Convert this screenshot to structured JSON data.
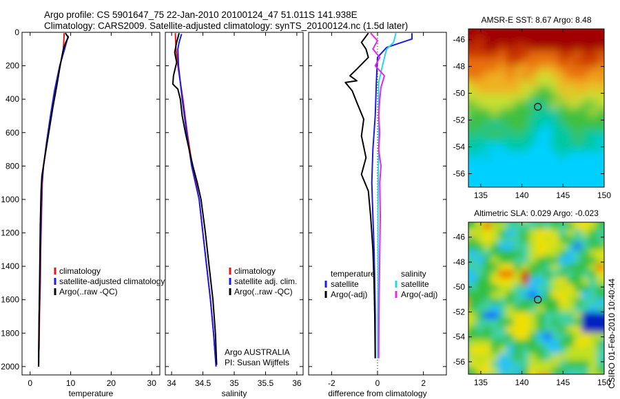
{
  "header": {
    "line1": "Argo profile: CS 5901647_75 22-Jan-2010 20100124_47 51.011S 141.938E",
    "line2": "Climatology: CARS2009. Satellite-adjusted climatology: synTS_20100124.nc (1.5d later)"
  },
  "side_label": "CSIRO 01-Feb-2010 10:40:44",
  "colors": {
    "climatology": "#ee1111",
    "satellite": "#1a1aee",
    "argo": "#000000",
    "sat_salinity": "#22d8e8",
    "argo_adj_salinity": "#ee22ee"
  },
  "chart_data": [
    {
      "type": "line",
      "name": "temperature",
      "xlabel": "temperature",
      "ylabel": "",
      "xlim": [
        -2,
        32
      ],
      "ylim": [
        2050,
        0
      ],
      "xticks": [
        0,
        10,
        20,
        30
      ],
      "yticks": [
        0,
        200,
        400,
        600,
        800,
        1000,
        1200,
        1400,
        1600,
        1800,
        2000
      ],
      "legend": {
        "placement": "lower-right",
        "entries": [
          "climatology",
          "satellite-adjusted climatology",
          "Argo(..raw -QC)"
        ]
      },
      "series": [
        {
          "key": "climatology",
          "color": "climatology",
          "points": [
            [
              8.4,
              5
            ],
            [
              8.2,
              100
            ],
            [
              7.4,
              200
            ],
            [
              6.1,
              350
            ],
            [
              5.1,
              500
            ],
            [
              4.2,
              650
            ],
            [
              3.3,
              800
            ],
            [
              3.0,
              900
            ],
            [
              2.8,
              1100
            ],
            [
              2.6,
              1300
            ],
            [
              2.5,
              1500
            ],
            [
              2.3,
              1700
            ],
            [
              2.2,
              1900
            ]
          ]
        },
        {
          "key": "satellite",
          "color": "satellite",
          "points": [
            [
              9.4,
              20
            ],
            [
              8.5,
              100
            ],
            [
              7.3,
              200
            ],
            [
              6.0,
              350
            ],
            [
              5.0,
              500
            ],
            [
              4.1,
              650
            ],
            [
              3.3,
              800
            ],
            [
              2.9,
              900
            ],
            [
              2.7,
              1100
            ],
            [
              2.5,
              1300
            ],
            [
              2.4,
              1500
            ],
            [
              2.2,
              1700
            ],
            [
              2.1,
              1900
            ],
            [
              2.1,
              2000
            ]
          ]
        },
        {
          "key": "argo",
          "color": "argo",
          "points": [
            [
              8.7,
              5
            ],
            [
              9.4,
              30
            ],
            [
              8.8,
              60
            ],
            [
              8.2,
              100
            ],
            [
              7.4,
              200
            ],
            [
              6.5,
              330
            ],
            [
              5.6,
              450
            ],
            [
              4.6,
              600
            ],
            [
              3.6,
              750
            ],
            [
              2.9,
              860
            ],
            [
              2.7,
              950
            ],
            [
              2.5,
              1150
            ],
            [
              2.4,
              1350
            ],
            [
              2.3,
              1550
            ],
            [
              2.2,
              1750
            ],
            [
              2.1,
              2000
            ]
          ]
        }
      ],
      "annotations": []
    },
    {
      "type": "line",
      "name": "salinity",
      "xlabel": "salinity",
      "ylabel": "",
      "xlim": [
        33.9,
        36.1
      ],
      "ylim": [
        2050,
        0
      ],
      "xticks": [
        34,
        34.5,
        35,
        35.5,
        36
      ],
      "yticks": [
        0,
        200,
        400,
        600,
        800,
        1000,
        1200,
        1400,
        1600,
        1800,
        2000
      ],
      "legend": {
        "placement": "lower-right",
        "entries": [
          "climatology",
          "satellite adj. clim.",
          "Argo(..raw -QC)"
        ]
      },
      "series": [
        {
          "key": "climatology",
          "color": "climatology",
          "points": [
            [
              34.06,
              5
            ],
            [
              34.07,
              100
            ],
            [
              34.1,
              200
            ],
            [
              34.18,
              400
            ],
            [
              34.25,
              600
            ],
            [
              34.33,
              800
            ],
            [
              34.39,
              900
            ],
            [
              34.44,
              1000
            ],
            [
              34.5,
              1200
            ],
            [
              34.56,
              1400
            ],
            [
              34.62,
              1600
            ],
            [
              34.67,
              1800
            ],
            [
              34.7,
              1950
            ]
          ]
        },
        {
          "key": "satellite",
          "color": "satellite",
          "points": [
            [
              34.16,
              10
            ],
            [
              34.12,
              60
            ],
            [
              34.1,
              100
            ],
            [
              34.11,
              200
            ],
            [
              34.17,
              400
            ],
            [
              34.24,
              600
            ],
            [
              34.32,
              800
            ],
            [
              34.38,
              900
            ],
            [
              34.44,
              1000
            ],
            [
              34.5,
              1200
            ],
            [
              34.56,
              1400
            ],
            [
              34.62,
              1600
            ],
            [
              34.67,
              1800
            ],
            [
              34.7,
              1950
            ],
            [
              34.71,
              2000
            ]
          ]
        },
        {
          "key": "argo",
          "color": "argo",
          "points": [
            [
              34.12,
              5
            ],
            [
              34.08,
              60
            ],
            [
              34.05,
              120
            ],
            [
              34.08,
              180
            ],
            [
              34.03,
              260
            ],
            [
              34.02,
              310
            ],
            [
              34.1,
              340
            ],
            [
              34.14,
              400
            ],
            [
              34.17,
              500
            ],
            [
              34.22,
              600
            ],
            [
              34.28,
              700
            ],
            [
              34.34,
              800
            ],
            [
              34.41,
              900
            ],
            [
              34.47,
              1000
            ],
            [
              34.54,
              1200
            ],
            [
              34.6,
              1400
            ],
            [
              34.66,
              1600
            ],
            [
              34.7,
              1800
            ],
            [
              34.72,
              1990
            ]
          ]
        }
      ],
      "annotations": [
        "Argo AUSTRALIA",
        "PI: Susan Wijffels"
      ]
    },
    {
      "type": "line",
      "name": "difference",
      "xlabel": "difference from climatology",
      "ylabel": "",
      "xlim": [
        -3,
        3
      ],
      "ylim": [
        2050,
        0
      ],
      "xticks": [
        -2,
        0,
        2
      ],
      "yticks": [
        0,
        200,
        400,
        600,
        800,
        1000,
        1200,
        1400,
        1600,
        1800,
        2000
      ],
      "legend": {
        "placement": "lower-center",
        "columns": [
          {
            "title": "temperature",
            "entries": [
              "satellite",
              "Argo(-adj)"
            ]
          },
          {
            "title": "salinity",
            "entries": [
              "satellite",
              "Argo(-adj)"
            ]
          }
        ]
      },
      "series": [
        {
          "key": "temp_satellite",
          "color": "satellite",
          "points": [
            [
              1.5,
              5
            ],
            [
              1.5,
              40
            ],
            [
              0.4,
              90
            ],
            [
              0.0,
              150
            ],
            [
              -0.05,
              300
            ],
            [
              -0.1,
              500
            ],
            [
              -0.2,
              700
            ],
            [
              -0.25,
              900
            ],
            [
              -0.2,
              1100
            ],
            [
              -0.15,
              1300
            ],
            [
              -0.12,
              1500
            ],
            [
              -0.1,
              1700
            ],
            [
              -0.1,
              1950
            ]
          ]
        },
        {
          "key": "temp_argo",
          "color": "argo",
          "points": [
            [
              -0.4,
              5
            ],
            [
              -0.7,
              60
            ],
            [
              -0.5,
              100
            ],
            [
              -0.4,
              150
            ],
            [
              -0.9,
              220
            ],
            [
              -1.2,
              260
            ],
            [
              -0.9,
              290
            ],
            [
              -1.4,
              300
            ],
            [
              -1.1,
              350
            ],
            [
              -0.9,
              420
            ],
            [
              -0.6,
              520
            ],
            [
              -0.7,
              620
            ],
            [
              -0.5,
              750
            ],
            [
              -0.7,
              850
            ],
            [
              -0.4,
              950
            ],
            [
              -0.3,
              1100
            ],
            [
              -0.2,
              1300
            ],
            [
              -0.15,
              1500
            ],
            [
              -0.12,
              1700
            ],
            [
              -0.1,
              1950
            ]
          ]
        },
        {
          "key": "sal_satellite",
          "color": "sat_salinity",
          "points": [
            [
              0.8,
              5
            ],
            [
              0.7,
              60
            ],
            [
              0.4,
              100
            ],
            [
              0.25,
              180
            ],
            [
              0.05,
              300
            ],
            [
              0.05,
              500
            ],
            [
              0.05,
              700
            ],
            [
              0.03,
              900
            ],
            [
              0.02,
              1100
            ],
            [
              0.02,
              1300
            ],
            [
              0.02,
              1500
            ],
            [
              0.01,
              1700
            ],
            [
              0.01,
              1950
            ]
          ]
        },
        {
          "key": "sal_argo",
          "color": "argo_adj_salinity",
          "points": [
            [
              -0.3,
              5
            ],
            [
              0.0,
              50
            ],
            [
              -0.2,
              100
            ],
            [
              0.1,
              150
            ],
            [
              -0.1,
              200
            ],
            [
              0.3,
              260
            ],
            [
              0.15,
              330
            ],
            [
              0.1,
              400
            ],
            [
              0.05,
              500
            ],
            [
              0.1,
              600
            ],
            [
              0.05,
              700
            ],
            [
              0.15,
              800
            ],
            [
              0.1,
              900
            ],
            [
              0.12,
              1100
            ],
            [
              0.1,
              1300
            ],
            [
              0.08,
              1500
            ],
            [
              0.06,
              1700
            ],
            [
              0.05,
              1950
            ]
          ]
        }
      ],
      "annotations": []
    },
    {
      "type": "heatmap",
      "name": "sst_map",
      "title": "AMSR-E SST: 8.67 Argo: 8.48",
      "xlim": [
        133.5,
        150
      ],
      "ylim": [
        -57,
        -45
      ],
      "xticks": [
        135,
        140,
        145,
        150
      ],
      "yticks": [
        -46,
        -48,
        -50,
        -52,
        -54,
        -56
      ],
      "marker": {
        "lon": 141.938,
        "lat": -51.011
      },
      "colormap": [
        "#00d0ff",
        "#00c8a0",
        "#40c040",
        "#c8e030",
        "#f0b020",
        "#e87010",
        "#c83000",
        "#a00000"
      ]
    },
    {
      "type": "heatmap",
      "name": "sla_map",
      "title": "Altimetric SLA: 0.029 Argo: -0.023",
      "xlim": [
        133.5,
        150
      ],
      "ylim": [
        -57,
        -45
      ],
      "xticks": [
        135,
        140,
        145,
        150
      ],
      "yticks": [
        -46,
        -48,
        -50,
        -52,
        -54,
        -56
      ],
      "marker": {
        "lon": 141.938,
        "lat": -51.011
      },
      "colormap": [
        "#0020c0",
        "#0060ff",
        "#20c0ff",
        "#40d0a0",
        "#30c040",
        "#c0e020",
        "#f0e000",
        "#f06000",
        "#d00000"
      ]
    }
  ]
}
